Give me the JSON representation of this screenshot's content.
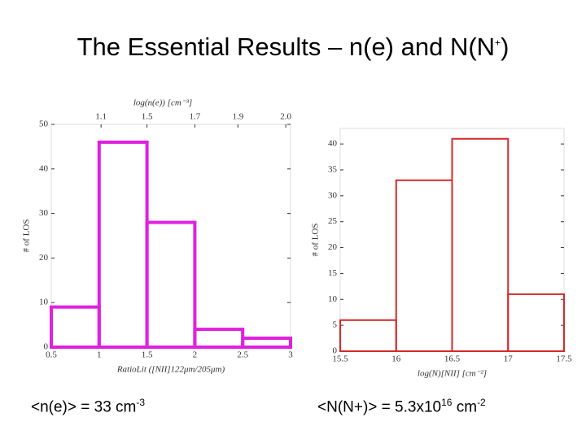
{
  "title": {
    "main": "The Essential Results – n(e) and N(N",
    "sup": "+",
    "end": ")"
  },
  "captions": [
    {
      "text": "<n(e)> = 33 cm",
      "sup": "-3"
    },
    {
      "text": "<N(N+)> = 5.3x10",
      "sup": "16",
      "text2": " cm",
      "sup2": "-2"
    }
  ],
  "chart_data": [
    {
      "type": "histogram",
      "color": "#e020e0",
      "bins": [
        0.5,
        1.0,
        1.5,
        2.0,
        2.5,
        3.0
      ],
      "values": [
        9,
        46,
        28,
        4,
        2
      ],
      "xlim": [
        0.5,
        3.0
      ],
      "xticks": [
        0.5,
        1.0,
        1.5,
        2.0,
        2.5,
        3.0
      ],
      "ylim": [
        0,
        50
      ],
      "yticks": [
        0,
        10,
        20,
        30,
        40,
        50
      ],
      "x2label": "log(n(e)) [cm⁻³]",
      "x2ticks": [
        {
          "value": 1.02,
          "label": "1.1"
        },
        {
          "value": 1.5,
          "label": "1.5"
        },
        {
          "value": 2.0,
          "label": "1.7"
        },
        {
          "value": 2.45,
          "label": "1.9"
        },
        {
          "value": 2.95,
          "label": "2.0"
        }
      ],
      "xlabel": "RatioLit ([NII]122μm/205μm)",
      "ylabel": "# of LOS"
    },
    {
      "type": "histogram",
      "color": "#d42a2a",
      "bins": [
        15.5,
        16.0,
        16.5,
        17.0,
        17.5
      ],
      "values": [
        6,
        33,
        41,
        11
      ],
      "xlim": [
        15.5,
        17.5
      ],
      "xticks": [
        15.5,
        16.0,
        16.5,
        17.0,
        17.5
      ],
      "ylim": [
        0,
        43
      ],
      "yticks": [
        0,
        5,
        10,
        15,
        20,
        25,
        30,
        35,
        40
      ],
      "xlabel": "log(N)[NII] [cm⁻²]",
      "ylabel": "# of LOS"
    }
  ]
}
